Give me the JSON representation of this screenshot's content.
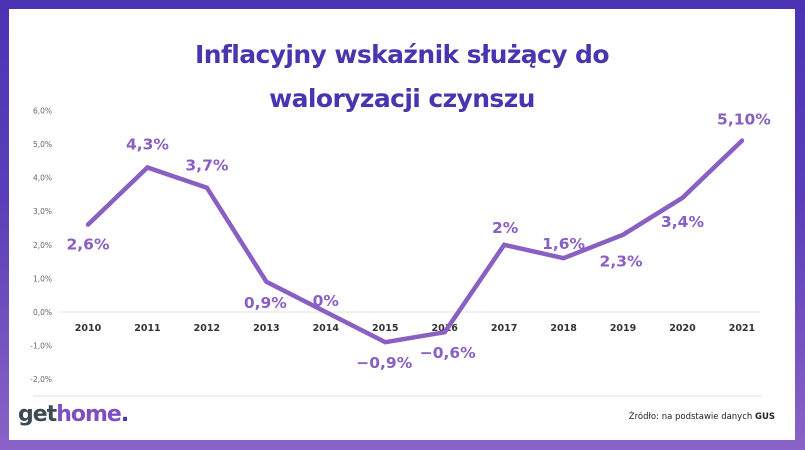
{
  "header": {
    "title_line1": "Inflacyjny wskaźnik służący do",
    "title_line2": "waloryzacji czynszu"
  },
  "footer": {
    "logo_get": "get",
    "logo_home": "home",
    "logo_dot": ".",
    "source_prefix": "Źródło: na podstawie danych ",
    "source_bold": "GUS"
  },
  "colors": {
    "title": "#4a35b0",
    "line": "#8a5fc4",
    "border_top": "#4a34b4",
    "border_bottom": "#8a63c6"
  },
  "chart_data": {
    "type": "line",
    "title": "Inflacyjny wskaźnik służący do waloryzacji czynszu",
    "xlabel": "",
    "ylabel": "",
    "categories": [
      "2010",
      "2011",
      "2012",
      "2013",
      "2014",
      "2015",
      "2016",
      "2017",
      "2018",
      "2019",
      "2020",
      "2021"
    ],
    "values": [
      2.6,
      4.3,
      3.7,
      0.9,
      0.0,
      -0.9,
      -0.6,
      2.0,
      1.6,
      2.3,
      3.4,
      5.1
    ],
    "data_labels": [
      "2,6%",
      "4,3%",
      "3,7%",
      "0,9%",
      "0%",
      "-0,9%",
      "-0,6%",
      "2%",
      "1,6%",
      "2,3%",
      "3,4%",
      "5,10%"
    ],
    "y_ticks": [
      "6,0%",
      "5,0%",
      "4,0%",
      "3,0%",
      "2,0%",
      "1,0%",
      "0,0%",
      "-1,0%",
      "-2,0%"
    ],
    "ylim": [
      -2,
      6
    ],
    "grid": false,
    "legend": null,
    "source": "Źródło: na podstawie danych GUS"
  }
}
